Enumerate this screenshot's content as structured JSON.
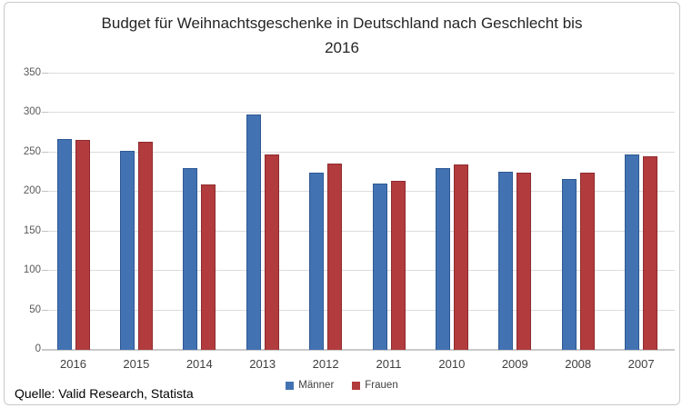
{
  "title_lines": [
    "Budget für Weihnachtsgeschenke in Deutschland nach Geschlecht bis",
    "2016"
  ],
  "source": "Quelle: Valid Research, Statista",
  "colors": {
    "maenner_fill": "#4272B2",
    "maenner_border": "#2E5894",
    "frauen_fill": "#B23B3E",
    "frauen_border": "#8E2B2E",
    "gridline": "#DCDCDC",
    "axis_text": "#595959"
  },
  "chart_data": {
    "type": "bar",
    "title": "Budget für Weihnachtsgeschenke in Deutschland nach Geschlecht bis 2016",
    "categories": [
      "2016",
      "2015",
      "2014",
      "2013",
      "2012",
      "2011",
      "2010",
      "2009",
      "2008",
      "2007"
    ],
    "series": [
      {
        "name": "Männer",
        "color": "#4272B2",
        "border": "#2E5894",
        "values": [
          267,
          252,
          230,
          298,
          225,
          211,
          230,
          226,
          216,
          248
        ]
      },
      {
        "name": "Frauen",
        "color": "#B23B3E",
        "border": "#8E2B2E",
        "values": [
          266,
          264,
          209,
          248,
          236,
          214,
          235,
          225,
          224,
          245
        ]
      }
    ],
    "ylim": [
      0,
      350
    ],
    "yticks": [
      0,
      50,
      100,
      150,
      200,
      250,
      300,
      350
    ],
    "grid": "horizontal",
    "legend_position": "bottom",
    "xlabel": "",
    "ylabel": ""
  }
}
